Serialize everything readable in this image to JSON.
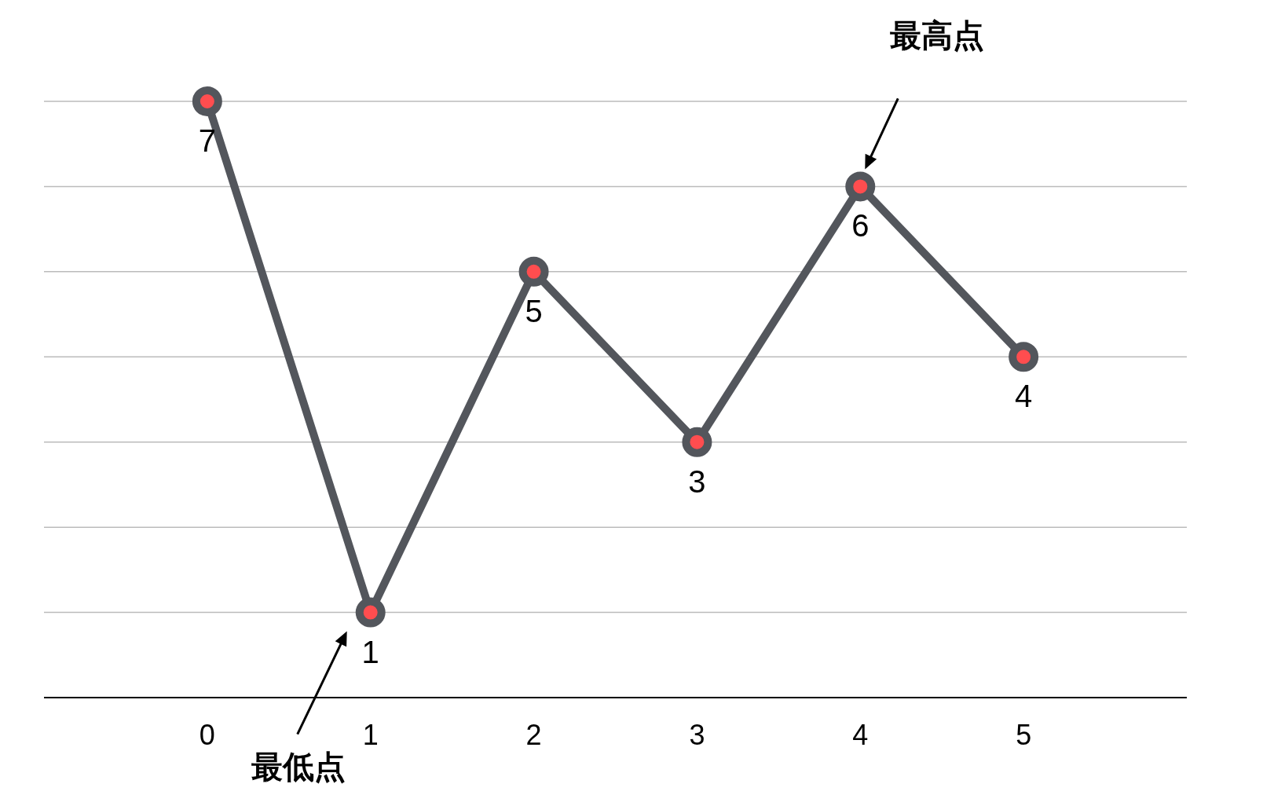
{
  "chart_data": {
    "type": "line",
    "categories": [
      "0",
      "1",
      "2",
      "3",
      "4",
      "5"
    ],
    "series": [
      {
        "color": "#53565c",
        "values": [
          7,
          1,
          5,
          3,
          6,
          4
        ]
      }
    ],
    "ylim": [
      0,
      7
    ],
    "yticks": [
      {
        "value": 0,
        "label": null
      },
      {
        "value": 1,
        "label": null
      },
      {
        "value": 2,
        "label": null
      },
      {
        "value": 3,
        "label": null
      },
      {
        "value": 4,
        "label": null
      },
      {
        "value": 5,
        "label": null
      },
      {
        "value": 6,
        "label": null
      },
      {
        "value": 7,
        "label": null
      }
    ],
    "tick_labels": "x",
    "grid": "y",
    "marker": "circle",
    "line_style": "solid",
    "data_labels": true,
    "annotations": [
      "最高点",
      "最低点"
    ]
  }
}
